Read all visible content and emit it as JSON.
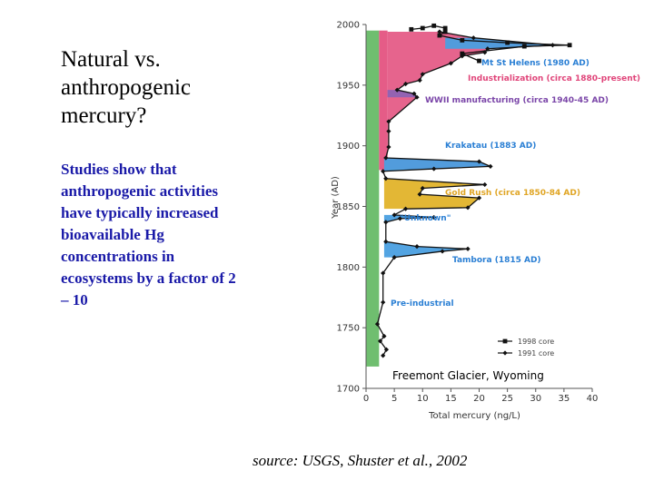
{
  "slide": {
    "title": "Natural vs. anthropogenic mercury?",
    "body": "Studies show that anthropogenic activities have typically increased bioavailable Hg concentrations in ecosystems by a factor of 2 – 10",
    "source": "source: USGS, Shuster et al., 2002"
  },
  "chart_data": {
    "type": "line",
    "orientation": "vertical (x = mercury, y = year)",
    "xlabel": "Total mercury (ng/L)",
    "ylabel": "Year (AD)",
    "xlim": [
      0,
      40
    ],
    "ylim": [
      1700,
      2000
    ],
    "xticks": [
      0,
      5,
      10,
      15,
      20,
      25,
      30,
      35,
      40
    ],
    "yticks": [
      1700,
      1750,
      1800,
      1850,
      1900,
      1950,
      2000
    ],
    "caption": "Freemont Glacier, Wyoming",
    "legend": [
      "1998 core",
      "1991 core"
    ],
    "colors": {
      "pre_industrial": "#6fbe6f",
      "industrialization": "#e55c87",
      "wwii": "#8e63b4",
      "volcanic": "#4a9fe0",
      "gold_rush": "#e2b32a"
    },
    "annotations": [
      {
        "label": "Mt St Helens (1980 AD)",
        "year": 1980,
        "color": "#2a7fd4"
      },
      {
        "label": "Industrialization (circa 1880-present)",
        "year": 1955,
        "color": "#e0457a"
      },
      {
        "label": "WWII manufacturing (circa 1940-45 AD)",
        "year": 1942,
        "color": "#7a45a8"
      },
      {
        "label": "Krakatau (1883 AD)",
        "year": 1883,
        "color": "#2a7fd4"
      },
      {
        "label": "Gold Rush (circa 1850-84 AD)",
        "year": 1860,
        "color": "#e0a524"
      },
      {
        "label": "\"Unknown\"",
        "year": 1840,
        "color": "#2a7fd4"
      },
      {
        "label": "Tambora (1815 AD)",
        "year": 1815,
        "color": "#2a7fd4"
      },
      {
        "label": "Pre-industrial",
        "year": 1775,
        "color": "#2a7fd4"
      }
    ],
    "series": [
      {
        "name": "1991 core",
        "points": [
          {
            "x": 3.0,
            "y": 1727
          },
          {
            "x": 3.6,
            "y": 1732
          },
          {
            "x": 2.5,
            "y": 1739
          },
          {
            "x": 3.2,
            "y": 1743
          },
          {
            "x": 2.0,
            "y": 1753
          },
          {
            "x": 3.0,
            "y": 1771
          },
          {
            "x": 3.0,
            "y": 1795
          },
          {
            "x": 5.0,
            "y": 1808
          },
          {
            "x": 13.5,
            "y": 1813
          },
          {
            "x": 18.0,
            "y": 1815
          },
          {
            "x": 9.0,
            "y": 1817
          },
          {
            "x": 3.5,
            "y": 1821
          },
          {
            "x": 3.5,
            "y": 1837
          },
          {
            "x": 6.0,
            "y": 1840
          },
          {
            "x": 12.0,
            "y": 1841
          },
          {
            "x": 5.0,
            "y": 1843
          },
          {
            "x": 7.0,
            "y": 1848
          },
          {
            "x": 18.0,
            "y": 1849
          },
          {
            "x": 20.0,
            "y": 1857
          },
          {
            "x": 9.5,
            "y": 1860
          },
          {
            "x": 10.0,
            "y": 1865
          },
          {
            "x": 21.0,
            "y": 1868
          },
          {
            "x": 3.5,
            "y": 1873
          },
          {
            "x": 3.0,
            "y": 1879
          },
          {
            "x": 12.0,
            "y": 1881
          },
          {
            "x": 22.0,
            "y": 1883
          },
          {
            "x": 20.0,
            "y": 1887
          },
          {
            "x": 3.5,
            "y": 1890
          },
          {
            "x": 4.0,
            "y": 1899
          },
          {
            "x": 4.0,
            "y": 1912
          },
          {
            "x": 4.0,
            "y": 1920
          },
          {
            "x": 9.0,
            "y": 1940
          },
          {
            "x": 8.5,
            "y": 1943
          },
          {
            "x": 5.5,
            "y": 1946
          },
          {
            "x": 7.0,
            "y": 1951
          },
          {
            "x": 9.5,
            "y": 1954
          },
          {
            "x": 10.0,
            "y": 1959
          },
          {
            "x": 15.0,
            "y": 1968
          },
          {
            "x": 17.0,
            "y": 1974
          },
          {
            "x": 21.0,
            "y": 1977
          },
          {
            "x": 21.5,
            "y": 1980
          },
          {
            "x": 33.0,
            "y": 1983
          },
          {
            "x": 19.0,
            "y": 1989
          },
          {
            "x": 13.0,
            "y": 1994
          }
        ]
      },
      {
        "name": "1998 core",
        "points": [
          {
            "x": 20.0,
            "y": 1970
          },
          {
            "x": 17.0,
            "y": 1976
          },
          {
            "x": 28.0,
            "y": 1982
          },
          {
            "x": 36.0,
            "y": 1983
          },
          {
            "x": 25.0,
            "y": 1985
          },
          {
            "x": 17.0,
            "y": 1987
          },
          {
            "x": 13.0,
            "y": 1991
          },
          {
            "x": 14.0,
            "y": 1994
          },
          {
            "x": 14.0,
            "y": 1997
          },
          {
            "x": 12.0,
            "y": 1999
          },
          {
            "x": 10.0,
            "y": 1997
          },
          {
            "x": 8.0,
            "y": 1996
          }
        ]
      }
    ]
  }
}
